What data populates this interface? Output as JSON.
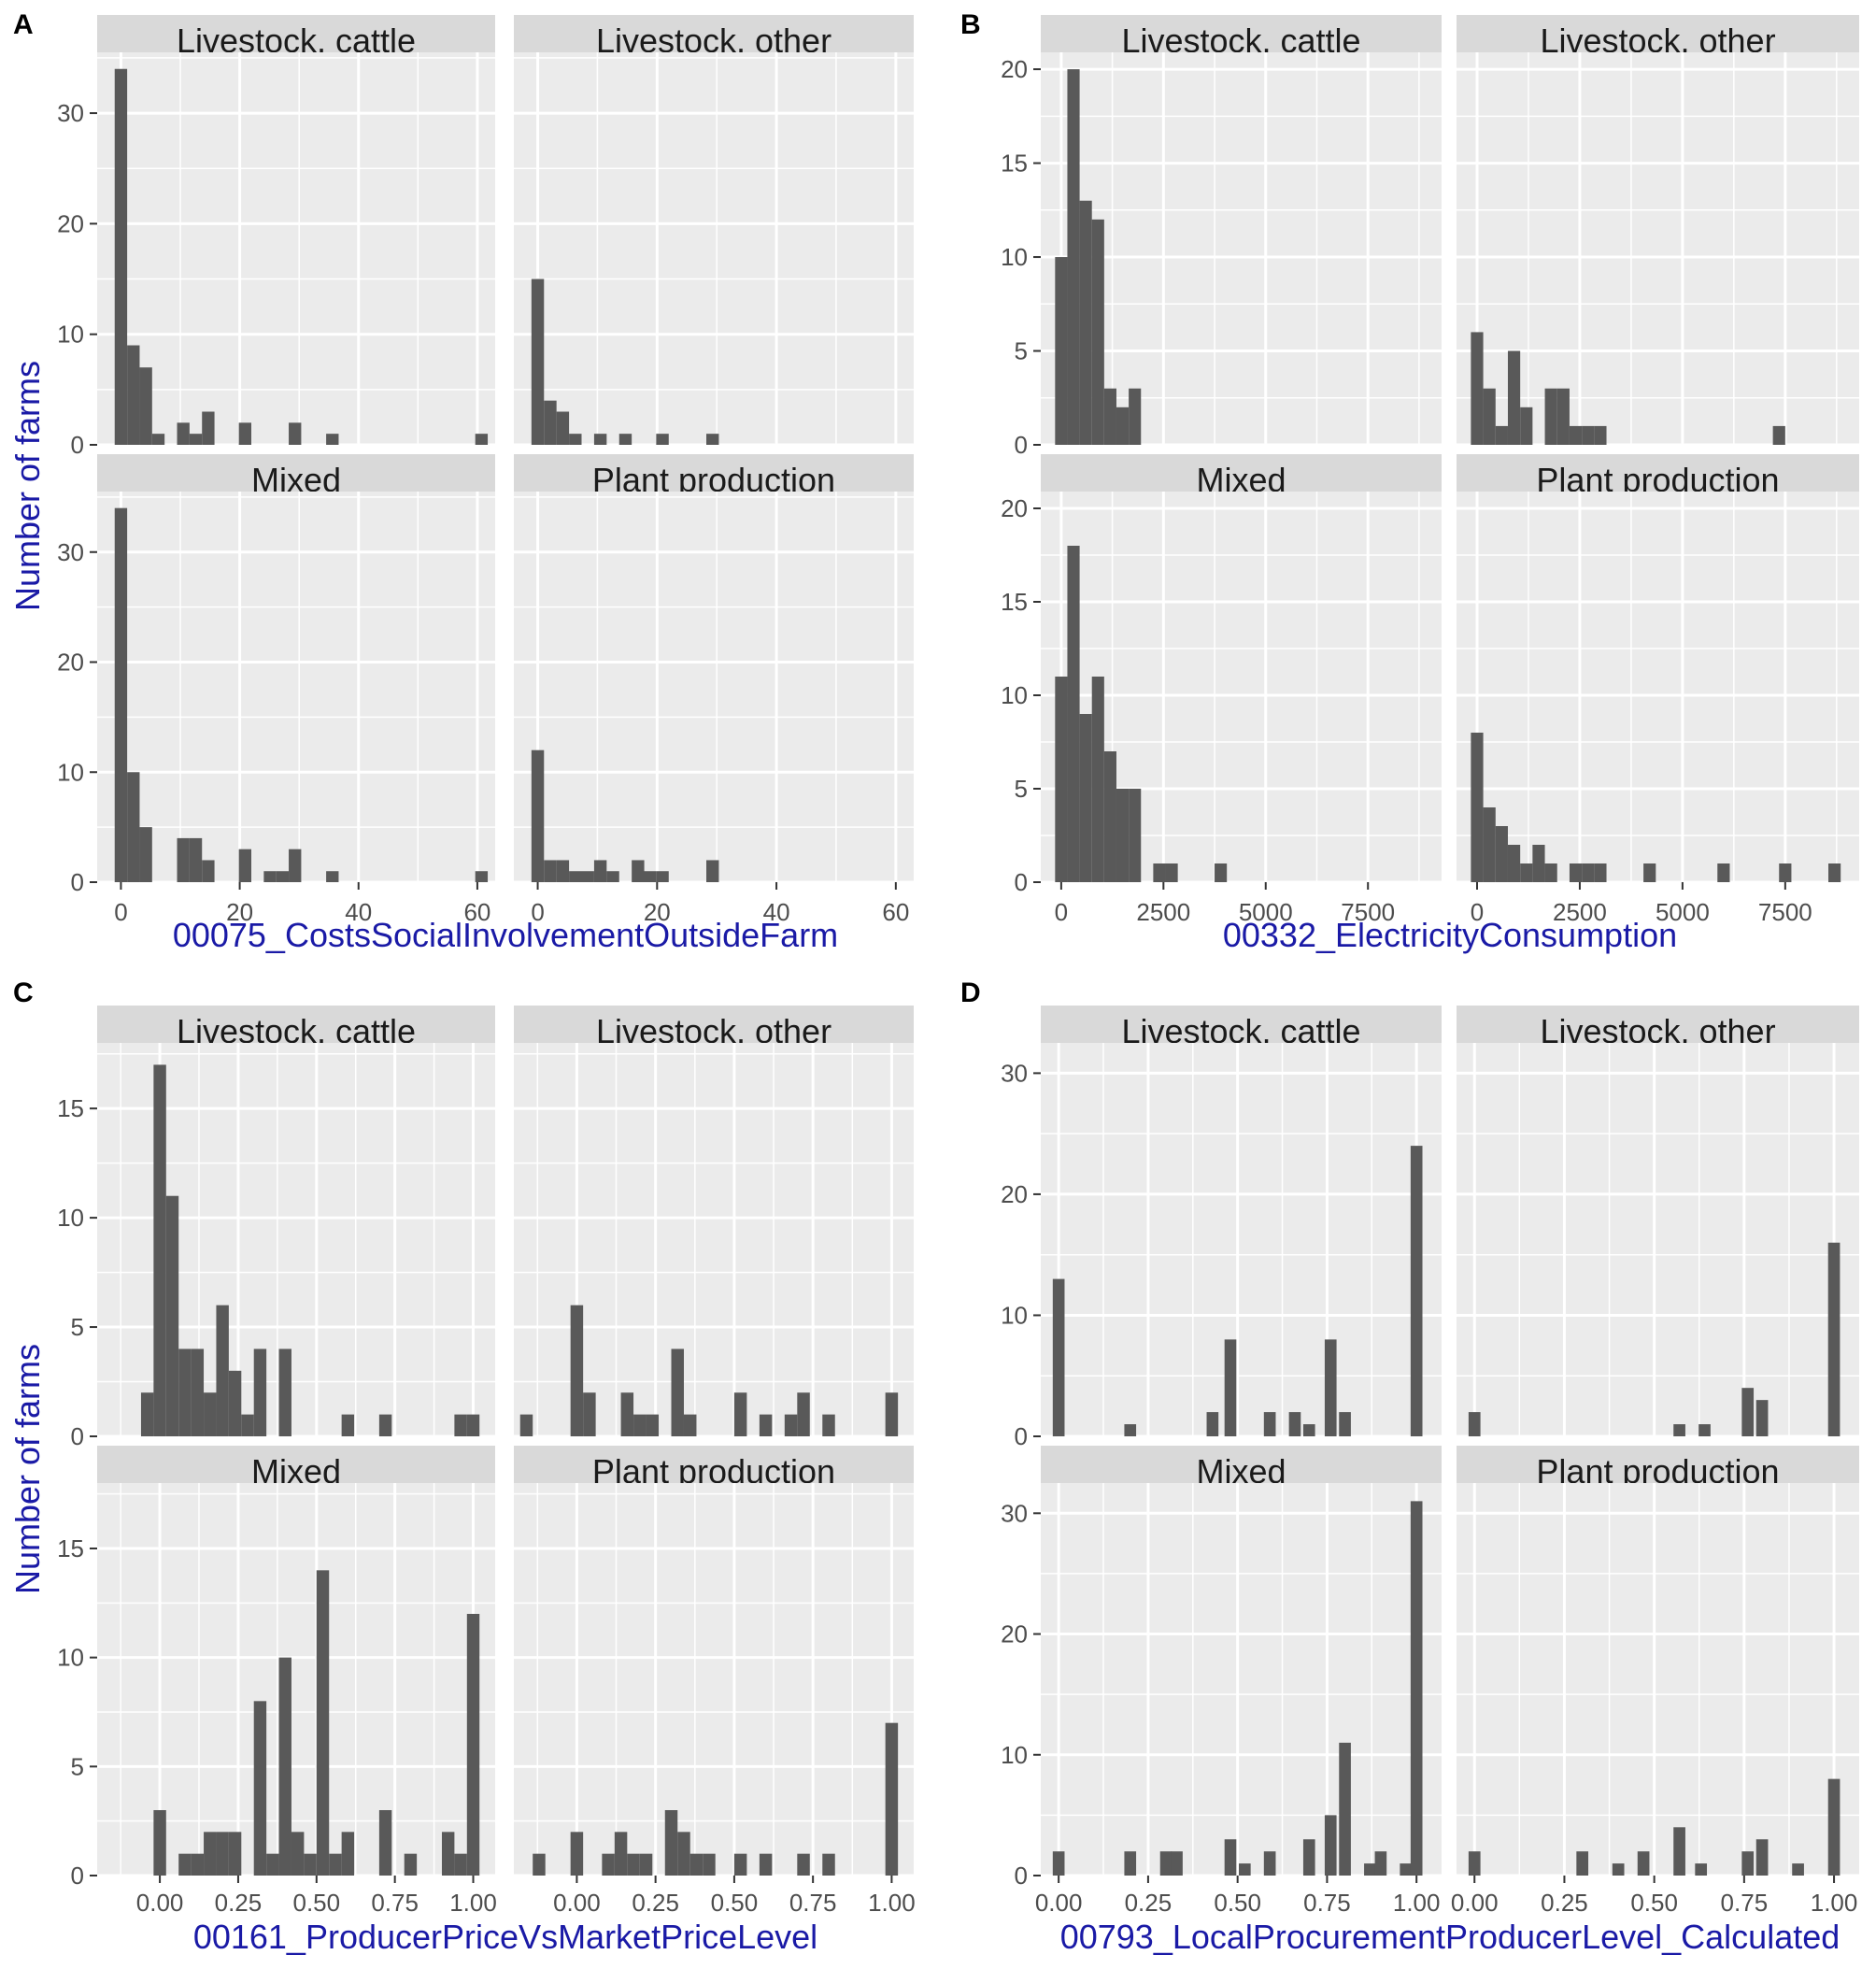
{
  "panel_labels": [
    "A",
    "B",
    "C",
    "D"
  ],
  "ylabel": "Number of farms",
  "facets": [
    "Livestock, cattle",
    "Livestock, other",
    "Mixed",
    "Plant production"
  ],
  "colors": {
    "bar": "#595959",
    "panel_bg": "#ebebeb",
    "strip_bg": "#d9d9d9",
    "grid": "#ffffff",
    "axis_label": "#1a1aa6"
  },
  "chart_data": [
    {
      "type": "bar",
      "tag": "A",
      "xlabel": "00075_CostsSocialInvolvementOutsideFarm",
      "ylabel": "Number of farms",
      "xlim": [
        -4,
        63
      ],
      "ylim": [
        0,
        35.5
      ],
      "xticks": [
        0,
        20,
        40,
        60
      ],
      "xtick_labels": [
        "0",
        "20",
        "40",
        "60"
      ],
      "yticks": [
        0,
        10,
        20,
        30
      ],
      "bin_width": 2.1,
      "facets": [
        {
          "name": "Livestock, cattle",
          "bins": [
            [
              0,
              34
            ],
            [
              2.1,
              9
            ],
            [
              4.2,
              7
            ],
            [
              6.3,
              1
            ],
            [
              10.5,
              2
            ],
            [
              12.6,
              1
            ],
            [
              14.7,
              3
            ],
            [
              20.9,
              2
            ],
            [
              29.3,
              2
            ],
            [
              35.6,
              1
            ],
            [
              60.7,
              1
            ]
          ]
        },
        {
          "name": "Livestock, other",
          "bins": [
            [
              0,
              15
            ],
            [
              2.1,
              4
            ],
            [
              4.2,
              3
            ],
            [
              6.3,
              1
            ],
            [
              10.5,
              1
            ],
            [
              14.7,
              1
            ],
            [
              20.9,
              1
            ],
            [
              29.3,
              1
            ]
          ]
        },
        {
          "name": "Mixed",
          "bins": [
            [
              0,
              34
            ],
            [
              2.1,
              10
            ],
            [
              4.2,
              5
            ],
            [
              10.5,
              4
            ],
            [
              12.6,
              4
            ],
            [
              14.7,
              2
            ],
            [
              20.9,
              3
            ],
            [
              25.1,
              1
            ],
            [
              27.2,
              1
            ],
            [
              29.3,
              3
            ],
            [
              35.6,
              1
            ],
            [
              60.7,
              1
            ]
          ]
        },
        {
          "name": "Plant production",
          "bins": [
            [
              0,
              12
            ],
            [
              2.1,
              2
            ],
            [
              4.2,
              2
            ],
            [
              6.3,
              1
            ],
            [
              8.4,
              1
            ],
            [
              10.5,
              2
            ],
            [
              12.6,
              1
            ],
            [
              16.8,
              2
            ],
            [
              18.8,
              1
            ],
            [
              20.9,
              1
            ],
            [
              29.3,
              2
            ]
          ]
        }
      ]
    },
    {
      "type": "bar",
      "tag": "B",
      "xlabel": "00332_ElectricityConsumption",
      "ylabel": "",
      "xlim": [
        -500,
        9300
      ],
      "ylim": [
        0,
        20.9
      ],
      "xticks": [
        0,
        2500,
        5000,
        7500
      ],
      "xtick_labels": [
        "0",
        "2500",
        "5000",
        "7500"
      ],
      "yticks": [
        0,
        5,
        10,
        15,
        20
      ],
      "bin_width": 300,
      "facets": [
        {
          "name": "Livestock, cattle",
          "bins": [
            [
              0,
              10
            ],
            [
              300,
              20
            ],
            [
              600,
              13
            ],
            [
              900,
              12
            ],
            [
              1200,
              3
            ],
            [
              1500,
              2
            ],
            [
              1800,
              3
            ]
          ]
        },
        {
          "name": "Livestock, other",
          "bins": [
            [
              0,
              6
            ],
            [
              300,
              3
            ],
            [
              600,
              1
            ],
            [
              900,
              5
            ],
            [
              1200,
              2
            ],
            [
              1800,
              3
            ],
            [
              2100,
              3
            ],
            [
              2400,
              1
            ],
            [
              2700,
              1
            ],
            [
              3000,
              1
            ],
            [
              7350,
              1
            ]
          ]
        },
        {
          "name": "Mixed",
          "bins": [
            [
              0,
              11
            ],
            [
              300,
              18
            ],
            [
              600,
              9
            ],
            [
              900,
              11
            ],
            [
              1200,
              7
            ],
            [
              1500,
              5
            ],
            [
              1800,
              5
            ],
            [
              2400,
              1
            ],
            [
              2700,
              1
            ],
            [
              3900,
              1
            ]
          ]
        },
        {
          "name": "Plant production",
          "bins": [
            [
              0,
              8
            ],
            [
              300,
              4
            ],
            [
              600,
              3
            ],
            [
              900,
              2
            ],
            [
              1200,
              1
            ],
            [
              1500,
              2
            ],
            [
              1800,
              1
            ],
            [
              2400,
              1
            ],
            [
              2700,
              1
            ],
            [
              3000,
              1
            ],
            [
              4200,
              1
            ],
            [
              6000,
              1
            ],
            [
              7500,
              1
            ],
            [
              8700,
              1
            ]
          ]
        }
      ]
    },
    {
      "type": "bar",
      "tag": "C",
      "xlabel": "00161_ProducerPriceVsMarketPriceLevel",
      "ylabel": "Number of farms",
      "xlim": [
        -0.2,
        1.07
      ],
      "ylim": [
        0,
        18
      ],
      "xticks": [
        0,
        0.25,
        0.5,
        0.75,
        1
      ],
      "xtick_labels": [
        "0.00",
        "0.25",
        "0.50",
        "0.75",
        "1.00"
      ],
      "yticks": [
        0,
        5,
        10,
        15
      ],
      "bin_width": 0.04,
      "facets": [
        {
          "name": "Livestock, cattle",
          "bins": [
            [
              -0.04,
              2
            ],
            [
              0,
              17
            ],
            [
              0.04,
              11
            ],
            [
              0.08,
              4
            ],
            [
              0.12,
              4
            ],
            [
              0.16,
              2
            ],
            [
              0.2,
              6
            ],
            [
              0.24,
              3
            ],
            [
              0.28,
              1
            ],
            [
              0.32,
              4
            ],
            [
              0.4,
              4
            ],
            [
              0.6,
              1
            ],
            [
              0.72,
              1
            ],
            [
              0.96,
              1
            ],
            [
              1,
              1
            ]
          ]
        },
        {
          "name": "Livestock, other",
          "bins": [
            [
              -0.16,
              1
            ],
            [
              0,
              6
            ],
            [
              0.04,
              2
            ],
            [
              0.16,
              2
            ],
            [
              0.2,
              1
            ],
            [
              0.24,
              1
            ],
            [
              0.32,
              4
            ],
            [
              0.36,
              1
            ],
            [
              0.52,
              2
            ],
            [
              0.6,
              1
            ],
            [
              0.68,
              1
            ],
            [
              0.72,
              2
            ],
            [
              0.8,
              1
            ],
            [
              1,
              2
            ]
          ]
        },
        {
          "name": "Mixed",
          "bins": [
            [
              0,
              3
            ],
            [
              0.08,
              1
            ],
            [
              0.12,
              1
            ],
            [
              0.16,
              2
            ],
            [
              0.2,
              2
            ],
            [
              0.24,
              2
            ],
            [
              0.32,
              8
            ],
            [
              0.36,
              1
            ],
            [
              0.4,
              10
            ],
            [
              0.44,
              2
            ],
            [
              0.48,
              1
            ],
            [
              0.52,
              14
            ],
            [
              0.56,
              1
            ],
            [
              0.6,
              2
            ],
            [
              0.72,
              3
            ],
            [
              0.8,
              1
            ],
            [
              0.92,
              2
            ],
            [
              0.96,
              1
            ],
            [
              1,
              12
            ]
          ]
        },
        {
          "name": "Plant production",
          "bins": [
            [
              -0.12,
              1
            ],
            [
              0,
              2
            ],
            [
              0.1,
              1
            ],
            [
              0.14,
              2
            ],
            [
              0.18,
              1
            ],
            [
              0.22,
              1
            ],
            [
              0.3,
              3
            ],
            [
              0.34,
              2
            ],
            [
              0.38,
              1
            ],
            [
              0.42,
              1
            ],
            [
              0.52,
              1
            ],
            [
              0.6,
              1
            ],
            [
              0.72,
              1
            ],
            [
              0.8,
              1
            ],
            [
              1,
              7
            ]
          ]
        }
      ]
    },
    {
      "type": "bar",
      "tag": "D",
      "xlabel": "00793_LocalProcurementProducerLevel_Calculated",
      "ylabel": "",
      "xlim": [
        -0.05,
        1.07
      ],
      "ylim": [
        0,
        32.5
      ],
      "xticks": [
        0,
        0.25,
        0.5,
        0.75,
        1
      ],
      "xtick_labels": [
        "0.00",
        "0.25",
        "0.50",
        "0.75",
        "1.00"
      ],
      "yticks": [
        0,
        10,
        20,
        30
      ],
      "bin_width": 0.033,
      "facets": [
        {
          "name": "Livestock, cattle",
          "bins": [
            [
              0,
              13
            ],
            [
              0.2,
              1
            ],
            [
              0.43,
              2
            ],
            [
              0.48,
              8
            ],
            [
              0.59,
              2
            ],
            [
              0.66,
              2
            ],
            [
              0.7,
              1
            ],
            [
              0.76,
              8
            ],
            [
              0.8,
              2
            ],
            [
              1,
              24
            ]
          ]
        },
        {
          "name": "Livestock, other",
          "bins": [
            [
              0,
              2
            ],
            [
              0.57,
              1
            ],
            [
              0.64,
              1
            ],
            [
              0.76,
              4
            ],
            [
              0.8,
              3
            ],
            [
              1,
              16
            ]
          ]
        },
        {
          "name": "Mixed",
          "bins": [
            [
              0,
              2
            ],
            [
              0.2,
              2
            ],
            [
              0.3,
              2
            ],
            [
              0.33,
              2
            ],
            [
              0.48,
              3
            ],
            [
              0.52,
              1
            ],
            [
              0.59,
              2
            ],
            [
              0.7,
              3
            ],
            [
              0.76,
              5
            ],
            [
              0.8,
              11
            ],
            [
              0.87,
              1
            ],
            [
              0.9,
              2
            ],
            [
              0.97,
              1
            ],
            [
              1,
              31
            ]
          ]
        },
        {
          "name": "Plant production",
          "bins": [
            [
              0,
              2
            ],
            [
              0.3,
              2
            ],
            [
              0.4,
              1
            ],
            [
              0.47,
              2
            ],
            [
              0.57,
              4
            ],
            [
              0.63,
              1
            ],
            [
              0.76,
              2
            ],
            [
              0.8,
              3
            ],
            [
              0.9,
              1
            ],
            [
              1,
              8
            ]
          ]
        }
      ]
    }
  ]
}
